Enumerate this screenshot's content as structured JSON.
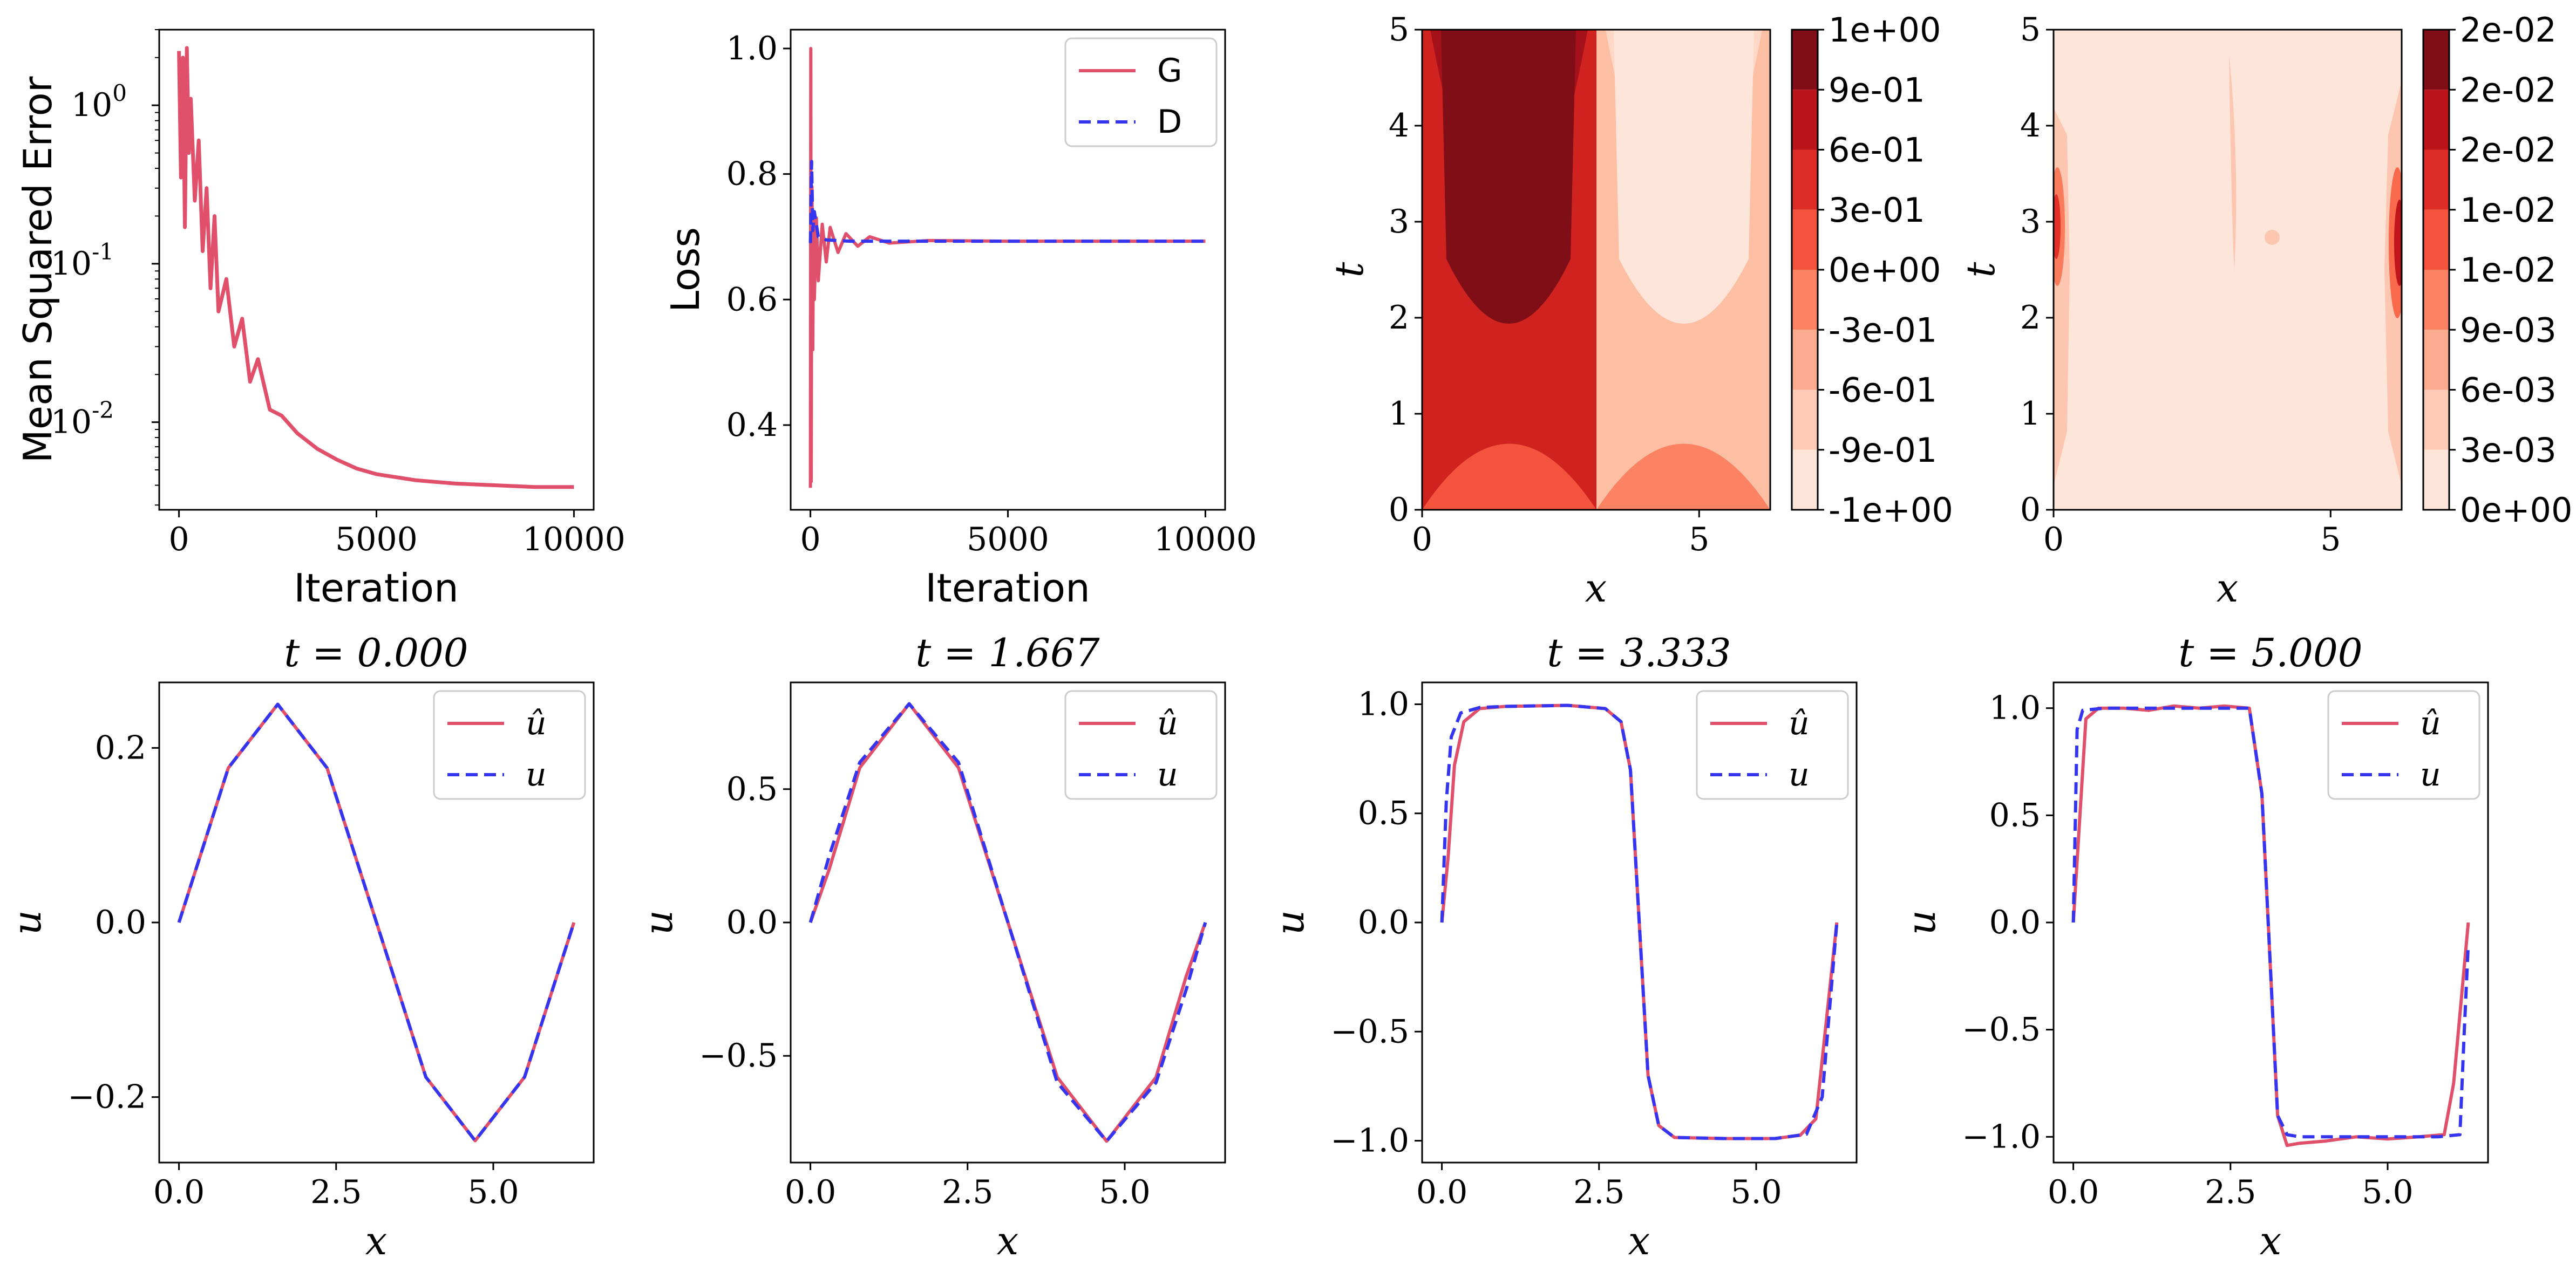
{
  "colors": {
    "G": "#e0506a",
    "D": "#3535f0",
    "reds_light": "#fee5d9",
    "reds_dark": "#7f0e16"
  },
  "chart_data": [
    {
      "type": "line",
      "panel": "mse",
      "xlabel": "Iteration",
      "ylabel": "Mean Squared Error",
      "yscale": "log",
      "xlim": [
        -500,
        10500
      ],
      "ylim": [
        0.0028,
        3.0
      ],
      "xticks": [
        0,
        5000,
        10000
      ],
      "xticklabels": [
        "0",
        "5000",
        "10000"
      ],
      "yticks": [
        1,
        0.1,
        0.01
      ],
      "yticklabels": [
        "10^0",
        "10^-1",
        "10^-2"
      ],
      "series": [
        {
          "color": "#e0506a",
          "x": [
            0,
            50,
            100,
            150,
            200,
            250,
            300,
            400,
            500,
            600,
            700,
            800,
            900,
            1000,
            1200,
            1400,
            1600,
            1800,
            2000,
            2300,
            2600,
            3000,
            3500,
            4000,
            4500,
            5000,
            6000,
            7000,
            8000,
            9000,
            10000
          ],
          "y": [
            2.2,
            0.35,
            2.0,
            0.17,
            2.3,
            0.5,
            1.1,
            0.25,
            0.6,
            0.12,
            0.3,
            0.07,
            0.2,
            0.05,
            0.08,
            0.03,
            0.045,
            0.018,
            0.025,
            0.012,
            0.011,
            0.0085,
            0.0068,
            0.0058,
            0.0051,
            0.0047,
            0.0043,
            0.0041,
            0.004,
            0.0039,
            0.0039
          ]
        }
      ]
    },
    {
      "type": "line",
      "panel": "loss",
      "xlabel": "Iteration",
      "ylabel": "Loss",
      "xlim": [
        -500,
        10500
      ],
      "ylim": [
        0.265,
        1.03
      ],
      "xticks": [
        0,
        5000,
        10000
      ],
      "xticklabels": [
        "0",
        "5000",
        "10000"
      ],
      "yticks": [
        0.4,
        0.6,
        0.8,
        1.0
      ],
      "yticklabels": [
        "0.4",
        "0.6",
        "0.8",
        "1.0"
      ],
      "legend": "top-right",
      "series": [
        {
          "name": "G",
          "color": "#e0506a",
          "x": [
            0,
            10,
            20,
            30,
            40,
            60,
            80,
            100,
            150,
            200,
            300,
            400,
            500,
            700,
            900,
            1200,
            1500,
            2000,
            3000,
            5000,
            10000
          ],
          "y": [
            0.3,
            1.0,
            0.31,
            0.62,
            0.78,
            0.52,
            0.74,
            0.6,
            0.73,
            0.63,
            0.72,
            0.66,
            0.715,
            0.675,
            0.705,
            0.685,
            0.7,
            0.69,
            0.694,
            0.693,
            0.693
          ]
        },
        {
          "name": "D",
          "color": "#3535f0",
          "x": [
            0,
            30,
            60,
            100,
            200,
            400,
            1000,
            10000
          ],
          "y": [
            0.69,
            0.82,
            0.71,
            0.74,
            0.7,
            0.695,
            0.693,
            0.693
          ]
        }
      ]
    },
    {
      "type": "heatmap",
      "panel": "u_field",
      "xlabel": "x",
      "ylabel": "t",
      "xlim": [
        0,
        6.283
      ],
      "ylim": [
        0,
        5
      ],
      "xticks": [
        0,
        5
      ],
      "xticklabels": [
        "0",
        "5"
      ],
      "yticks": [
        0,
        1,
        2,
        3,
        4,
        5
      ],
      "yticklabels": [
        "0",
        "1",
        "2",
        "3",
        "4",
        "5"
      ],
      "colorbar_labels": [
        "-1e+00",
        "-9e-01",
        "-6e-01",
        "-3e-01",
        "0e+00",
        "3e-01",
        "6e-01",
        "9e-01",
        "1e+00"
      ],
      "levels": [
        -1.0,
        -0.9,
        -0.6,
        -0.3,
        0.0,
        0.3,
        0.6,
        0.9,
        1.0
      ]
    },
    {
      "type": "heatmap",
      "panel": "abs_error",
      "xlabel": "x",
      "ylabel": "t",
      "xlim": [
        0,
        6.283
      ],
      "ylim": [
        0,
        5
      ],
      "xticks": [
        0,
        5
      ],
      "xticklabels": [
        "0",
        "5"
      ],
      "yticks": [
        0,
        1,
        2,
        3,
        4,
        5
      ],
      "yticklabels": [
        "0",
        "1",
        "2",
        "3",
        "4",
        "5"
      ],
      "colorbar_labels": [
        "0e+00",
        "3e-03",
        "6e-03",
        "9e-03",
        "1e-02",
        "1e-02",
        "2e-02",
        "2e-02",
        "2e-02"
      ]
    },
    {
      "type": "line",
      "panel": "slice_t0",
      "title": "t = 0.000",
      "xlabel": "x",
      "ylabel": "u",
      "xlim": [
        -0.314,
        6.597
      ],
      "ylim": [
        -0.275,
        0.275
      ],
      "xticks": [
        0,
        2.5,
        5
      ],
      "xticklabels": [
        "0.0",
        "2.5",
        "5.0"
      ],
      "yticks": [
        -0.2,
        0,
        0.2
      ],
      "yticklabels": [
        "−0.2",
        "0.0",
        "0.2"
      ],
      "legend": "top-right",
      "series": [
        {
          "name": "û",
          "color": "#e0506a",
          "x": [
            0,
            0.785,
            1.571,
            2.356,
            3.142,
            3.927,
            4.712,
            5.498,
            6.283
          ],
          "y": [
            0,
            0.177,
            0.25,
            0.177,
            0,
            -0.177,
            -0.25,
            -0.177,
            0
          ]
        },
        {
          "name": "u",
          "color": "#3535f0",
          "x": [
            0,
            0.785,
            1.571,
            2.356,
            3.142,
            3.927,
            4.712,
            5.498,
            6.283
          ],
          "y": [
            0,
            0.177,
            0.25,
            0.177,
            0,
            -0.177,
            -0.25,
            -0.177,
            0
          ]
        }
      ]
    },
    {
      "type": "line",
      "panel": "slice_t1",
      "title": "t = 1.667",
      "xlabel": "x",
      "ylabel": "u",
      "xlim": [
        -0.314,
        6.597
      ],
      "ylim": [
        -0.9,
        0.9
      ],
      "xticks": [
        0,
        2.5,
        5
      ],
      "xticklabels": [
        "0.0",
        "2.5",
        "5.0"
      ],
      "yticks": [
        -0.5,
        0,
        0.5
      ],
      "yticklabels": [
        "−0.5",
        "0.0",
        "0.5"
      ],
      "legend": "top-right",
      "series": [
        {
          "name": "û",
          "color": "#e0506a",
          "x": [
            0,
            0.3,
            0.785,
            1.571,
            2.356,
            3.142,
            3.927,
            4.712,
            5.498,
            5.98,
            6.283
          ],
          "y": [
            0,
            0.2,
            0.58,
            0.82,
            0.58,
            0,
            -0.58,
            -0.82,
            -0.58,
            -0.2,
            0
          ]
        },
        {
          "name": "u",
          "color": "#3535f0",
          "x": [
            0,
            0.3,
            0.785,
            1.571,
            2.356,
            3.142,
            3.927,
            4.712,
            5.498,
            5.98,
            6.283
          ],
          "y": [
            0,
            0.25,
            0.6,
            0.82,
            0.6,
            0,
            -0.6,
            -0.82,
            -0.6,
            -0.25,
            0
          ]
        }
      ]
    },
    {
      "type": "line",
      "panel": "slice_t2",
      "title": "t = 3.333",
      "xlabel": "x",
      "ylabel": "u",
      "xlim": [
        -0.314,
        6.597
      ],
      "ylim": [
        -1.1,
        1.1
      ],
      "xticks": [
        0,
        2.5,
        5
      ],
      "xticklabels": [
        "0.0",
        "2.5",
        "5.0"
      ],
      "yticks": [
        -1.0,
        -0.5,
        0,
        0.5,
        1.0
      ],
      "yticklabels": [
        "−1.0",
        "−0.5",
        "0.0",
        "0.5",
        "1.0"
      ],
      "legend": "top-right",
      "series": [
        {
          "name": "û",
          "color": "#e0506a",
          "x": [
            0,
            0.1,
            0.2,
            0.35,
            0.6,
            1.0,
            2.0,
            2.6,
            2.85,
            3.0,
            3.14,
            3.28,
            3.45,
            3.7,
            4.5,
            5.3,
            5.7,
            5.95,
            6.283
          ],
          "y": [
            0,
            0.3,
            0.72,
            0.92,
            0.98,
            0.99,
            0.995,
            0.98,
            0.92,
            0.7,
            0,
            -0.7,
            -0.93,
            -0.985,
            -0.99,
            -0.99,
            -0.975,
            -0.9,
            0
          ]
        },
        {
          "name": "u",
          "color": "#3535f0",
          "x": [
            0,
            0.07,
            0.15,
            0.3,
            0.6,
            1.0,
            2.0,
            2.6,
            2.85,
            3.0,
            3.14,
            3.28,
            3.45,
            3.7,
            4.5,
            5.3,
            5.8,
            6.05,
            6.283
          ],
          "y": [
            0,
            0.55,
            0.85,
            0.96,
            0.985,
            0.99,
            0.995,
            0.98,
            0.92,
            0.7,
            0,
            -0.7,
            -0.93,
            -0.985,
            -0.99,
            -0.99,
            -0.97,
            -0.8,
            0
          ]
        }
      ]
    },
    {
      "type": "line",
      "panel": "slice_t3",
      "title": "t = 5.000",
      "xlabel": "x",
      "ylabel": "u",
      "xlim": [
        -0.314,
        6.597
      ],
      "ylim": [
        -1.12,
        1.12
      ],
      "xticks": [
        0,
        2.5,
        5
      ],
      "xticklabels": [
        "0.0",
        "2.5",
        "5.0"
      ],
      "yticks": [
        -1.0,
        -0.5,
        0,
        0.5,
        1.0
      ],
      "yticklabels": [
        "−1.0",
        "−0.5",
        "0.0",
        "0.5",
        "1.0"
      ],
      "legend": "top-right",
      "series": [
        {
          "name": "û",
          "color": "#e0506a",
          "x": [
            0,
            0.2,
            0.4,
            0.8,
            1.2,
            1.6,
            2.0,
            2.4,
            2.8,
            3.0,
            3.1,
            3.25,
            3.4,
            3.6,
            4.0,
            4.5,
            5.0,
            5.5,
            5.9,
            6.05,
            6.283
          ],
          "y": [
            0,
            0.95,
            1.0,
            1.0,
            0.99,
            1.01,
            1.0,
            1.01,
            1.0,
            0.6,
            0,
            -0.9,
            -1.04,
            -1.03,
            -1.02,
            -1.0,
            -1.01,
            -1.0,
            -0.99,
            -0.75,
            0
          ]
        },
        {
          "name": "u",
          "color": "#3535f0",
          "x": [
            0,
            0.06,
            0.15,
            0.5,
            1.0,
            2.0,
            2.8,
            3.0,
            3.1,
            3.25,
            3.4,
            3.6,
            4.0,
            5.0,
            5.8,
            6.15,
            6.22,
            6.283
          ],
          "y": [
            0,
            0.9,
            0.99,
            1.0,
            1.0,
            1.0,
            1.0,
            0.6,
            0,
            -0.9,
            -0.99,
            -1.0,
            -1.0,
            -1.0,
            -1.0,
            -0.99,
            -0.5,
            -0.1
          ]
        }
      ]
    }
  ]
}
